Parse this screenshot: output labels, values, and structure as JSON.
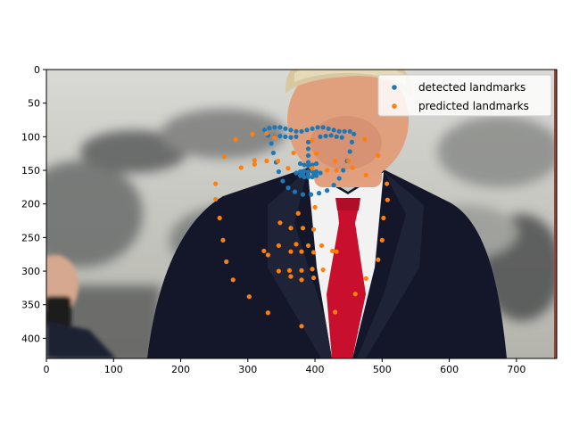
{
  "chart_data": {
    "type": "scatter",
    "title": "",
    "xlabel": "",
    "ylabel": "",
    "xlim": [
      0,
      760
    ],
    "ylim": [
      430,
      0
    ],
    "y_inverted": true,
    "xticks": [
      0,
      100,
      200,
      300,
      400,
      500,
      600,
      700
    ],
    "yticks": [
      0,
      50,
      100,
      150,
      200,
      250,
      300,
      350,
      400
    ],
    "legend_position": "top-right",
    "background_image": "photo-of-man-in-suit-and-red-tie",
    "series": [
      {
        "name": "detected landmarks",
        "color": "#1f77b4",
        "points": [
          [
            325,
            90
          ],
          [
            332,
            87
          ],
          [
            340,
            86
          ],
          [
            348,
            86
          ],
          [
            356,
            88
          ],
          [
            364,
            90
          ],
          [
            372,
            92
          ],
          [
            380,
            92
          ],
          [
            388,
            90
          ],
          [
            396,
            88
          ],
          [
            404,
            86
          ],
          [
            412,
            86
          ],
          [
            420,
            88
          ],
          [
            428,
            90
          ],
          [
            436,
            92
          ],
          [
            444,
            92
          ],
          [
            452,
            92
          ],
          [
            340,
            100
          ],
          [
            348,
            99
          ],
          [
            356,
            100
          ],
          [
            364,
            101
          ],
          [
            372,
            100
          ],
          [
            408,
            100
          ],
          [
            416,
            99
          ],
          [
            424,
            98
          ],
          [
            432,
            100
          ],
          [
            440,
            101
          ],
          [
            330,
            98
          ],
          [
            335,
            110
          ],
          [
            338,
            124
          ],
          [
            342,
            138
          ],
          [
            346,
            152
          ],
          [
            352,
            166
          ],
          [
            360,
            176
          ],
          [
            370,
            182
          ],
          [
            382,
            186
          ],
          [
            394,
            186
          ],
          [
            406,
            184
          ],
          [
            418,
            180
          ],
          [
            428,
            172
          ],
          [
            436,
            162
          ],
          [
            442,
            150
          ],
          [
            448,
            136
          ],
          [
            452,
            122
          ],
          [
            455,
            108
          ],
          [
            458,
            96
          ],
          [
            390,
            108
          ],
          [
            390,
            118
          ],
          [
            390,
            128
          ],
          [
            390,
            138
          ],
          [
            378,
            140
          ],
          [
            384,
            142
          ],
          [
            390,
            143
          ],
          [
            396,
            142
          ],
          [
            402,
            140
          ],
          [
            372,
            154
          ],
          [
            378,
            152
          ],
          [
            384,
            151
          ],
          [
            390,
            152
          ],
          [
            396,
            151
          ],
          [
            402,
            152
          ],
          [
            408,
            154
          ],
          [
            402,
            158
          ],
          [
            396,
            160
          ],
          [
            390,
            160
          ],
          [
            384,
            160
          ],
          [
            378,
            158
          ],
          [
            382,
            155
          ],
          [
            390,
            156
          ],
          [
            398,
            155
          ]
        ]
      },
      {
        "name": "predicted landmarks",
        "color": "#ff7f0e",
        "points": [
          [
            282,
            104
          ],
          [
            307,
            96
          ],
          [
            328,
            95
          ],
          [
            340,
            101
          ],
          [
            265,
            130
          ],
          [
            290,
            146
          ],
          [
            310,
            141
          ],
          [
            328,
            136
          ],
          [
            310,
            135
          ],
          [
            345,
            136
          ],
          [
            368,
            124
          ],
          [
            360,
            147
          ],
          [
            396,
            105
          ],
          [
            402,
            125
          ],
          [
            396,
            147
          ],
          [
            418,
            150
          ],
          [
            430,
            136
          ],
          [
            432,
            150
          ],
          [
            450,
            136
          ],
          [
            456,
            146
          ],
          [
            476,
            157
          ],
          [
            474,
            104
          ],
          [
            494,
            128
          ],
          [
            252,
            170
          ],
          [
            252,
            193
          ],
          [
            258,
            221
          ],
          [
            263,
            254
          ],
          [
            268,
            286
          ],
          [
            278,
            313
          ],
          [
            302,
            338
          ],
          [
            330,
            362
          ],
          [
            380,
            382
          ],
          [
            430,
            361
          ],
          [
            460,
            334
          ],
          [
            476,
            311
          ],
          [
            494,
            283
          ],
          [
            500,
            254
          ],
          [
            502,
            221
          ],
          [
            508,
            194
          ],
          [
            507,
            170
          ],
          [
            348,
            228
          ],
          [
            375,
            214
          ],
          [
            400,
            205
          ],
          [
            364,
            236
          ],
          [
            382,
            236
          ],
          [
            398,
            238
          ],
          [
            346,
            262
          ],
          [
            372,
            260
          ],
          [
            364,
            271
          ],
          [
            380,
            271
          ],
          [
            390,
            262
          ],
          [
            398,
            272
          ],
          [
            410,
            262
          ],
          [
            324,
            270
          ],
          [
            330,
            276
          ],
          [
            346,
            300
          ],
          [
            362,
            299
          ],
          [
            364,
            308
          ],
          [
            380,
            313
          ],
          [
            380,
            299
          ],
          [
            396,
            297
          ],
          [
            398,
            310
          ],
          [
            412,
            298
          ],
          [
            426,
            270
          ],
          [
            432,
            271
          ]
        ]
      }
    ]
  }
}
